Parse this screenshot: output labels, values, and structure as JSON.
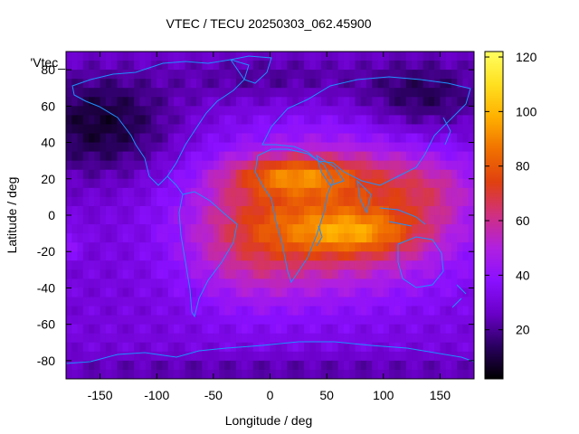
{
  "chart_data": {
    "type": "heatmap",
    "title": "VTEC / TECU 20250303_062.45900",
    "xlabel": "Longitude / deg",
    "ylabel": "Latitude / deg",
    "xlim": [
      -180,
      180
    ],
    "ylim": [
      -90,
      90
    ],
    "xticks": [
      -150,
      -100,
      -50,
      0,
      50,
      100,
      150
    ],
    "yticks": [
      -80,
      -60,
      -40,
      -20,
      0,
      20,
      40,
      60,
      80
    ],
    "colorbar": {
      "min": 2,
      "max": 122,
      "ticks": [
        20,
        40,
        60,
        80,
        100,
        120
      ],
      "colormap": [
        "#000000",
        "#2a0060",
        "#6a00c8",
        "#8a10ff",
        "#b020e0",
        "#d03080",
        "#e04010",
        "#f07000",
        "#ffb000",
        "#ffe020",
        "#ffff60"
      ]
    },
    "overlay_label": "'Vtec_",
    "coastline_color": "#1e90ff",
    "peaks": [
      {
        "lon": 80,
        "lat": -10,
        "value": 115
      },
      {
        "lon": 20,
        "lat": 25,
        "value": 105
      }
    ]
  }
}
